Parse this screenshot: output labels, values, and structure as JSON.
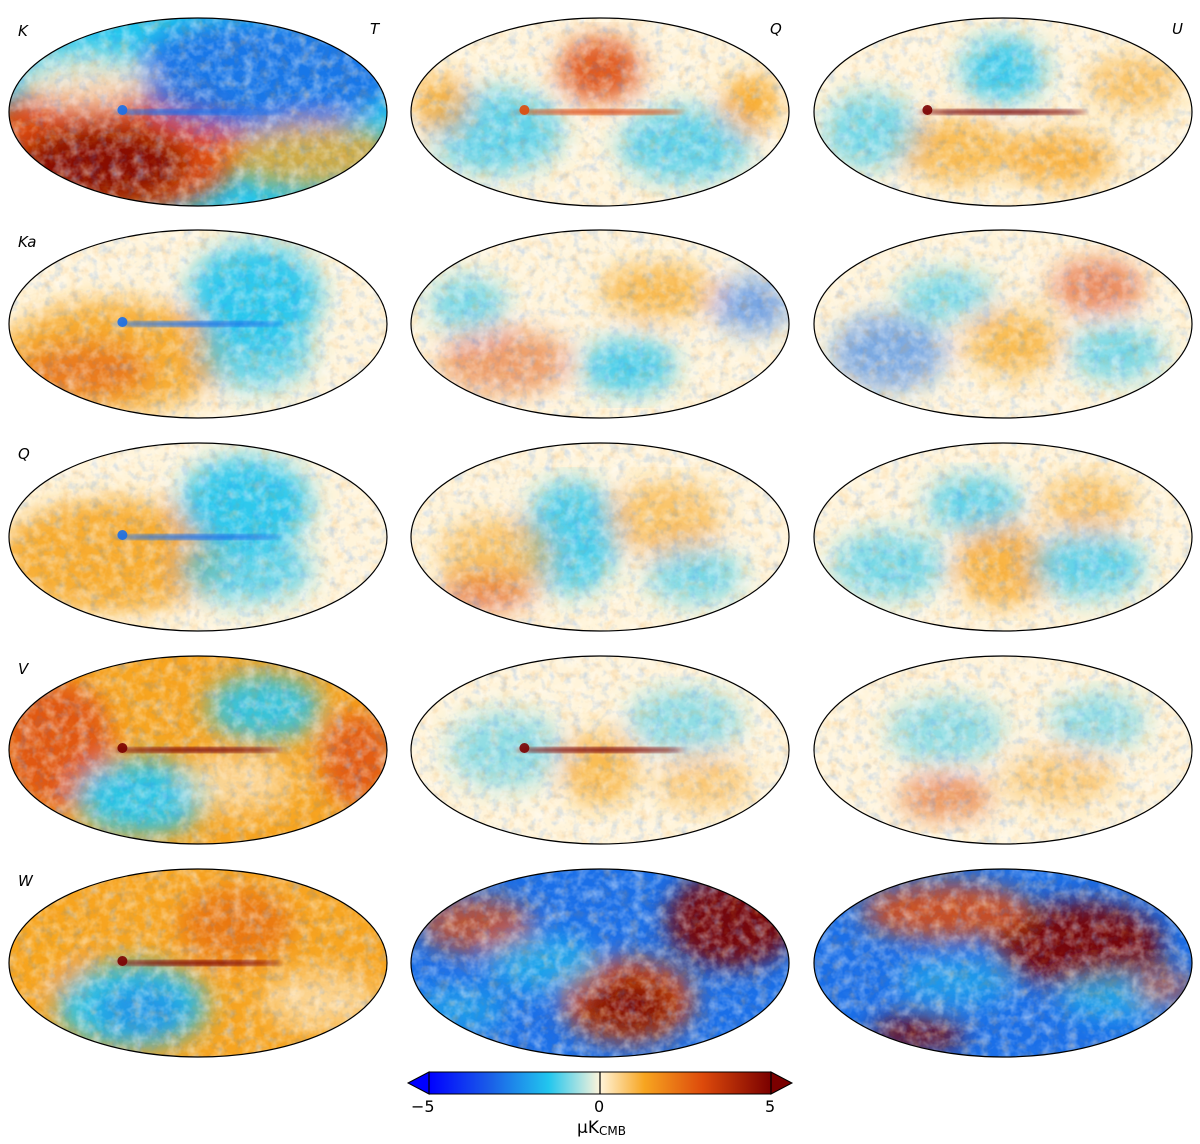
{
  "stokes_labels": [
    "T",
    "Q",
    "U"
  ],
  "band_labels": [
    "K",
    "Ka",
    "Q",
    "V",
    "W"
  ],
  "colorbar": {
    "min": -5,
    "max": 5,
    "ticks": [
      "−5",
      "0",
      "5"
    ],
    "unit_prefix": "μK",
    "unit_sub": "CMB",
    "extend": "both"
  },
  "colors": {
    "min": "#0000ff",
    "blue": "#1a6fe8",
    "cyan": "#22c6ee",
    "zero": "#fff4da",
    "orange": "#f7a520",
    "red": "#dd4a0b",
    "max": "#7a0000"
  }
}
